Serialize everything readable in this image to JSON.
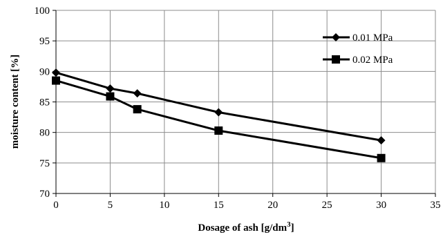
{
  "chart_data": {
    "type": "line",
    "title": "",
    "xlabel": "Dosage of ash [g/dm",
    "xlabel_sup": "3",
    "xlabel_end": "]",
    "ylabel": "moisture content [%]",
    "xlim": [
      0,
      35
    ],
    "ylim": [
      70,
      100
    ],
    "xticks": [
      0,
      5,
      10,
      15,
      20,
      25,
      30,
      35
    ],
    "yticks": [
      70,
      75,
      80,
      85,
      90,
      95,
      100
    ],
    "grid": true,
    "legend_position": "top-right",
    "line_color": "#000000",
    "series": [
      {
        "name": "0.01 MPa",
        "marker": "diamond",
        "points": [
          {
            "x": 0,
            "y": 89.8
          },
          {
            "x": 5,
            "y": 87.2
          },
          {
            "x": 7.5,
            "y": 86.4
          },
          {
            "x": 15,
            "y": 83.3
          },
          {
            "x": 30,
            "y": 78.7
          }
        ]
      },
      {
        "name": "0.02 MPa",
        "marker": "square",
        "points": [
          {
            "x": 0,
            "y": 88.5
          },
          {
            "x": 5,
            "y": 85.9
          },
          {
            "x": 7.5,
            "y": 83.8
          },
          {
            "x": 15,
            "y": 80.3
          },
          {
            "x": 30,
            "y": 75.8
          }
        ]
      }
    ]
  }
}
